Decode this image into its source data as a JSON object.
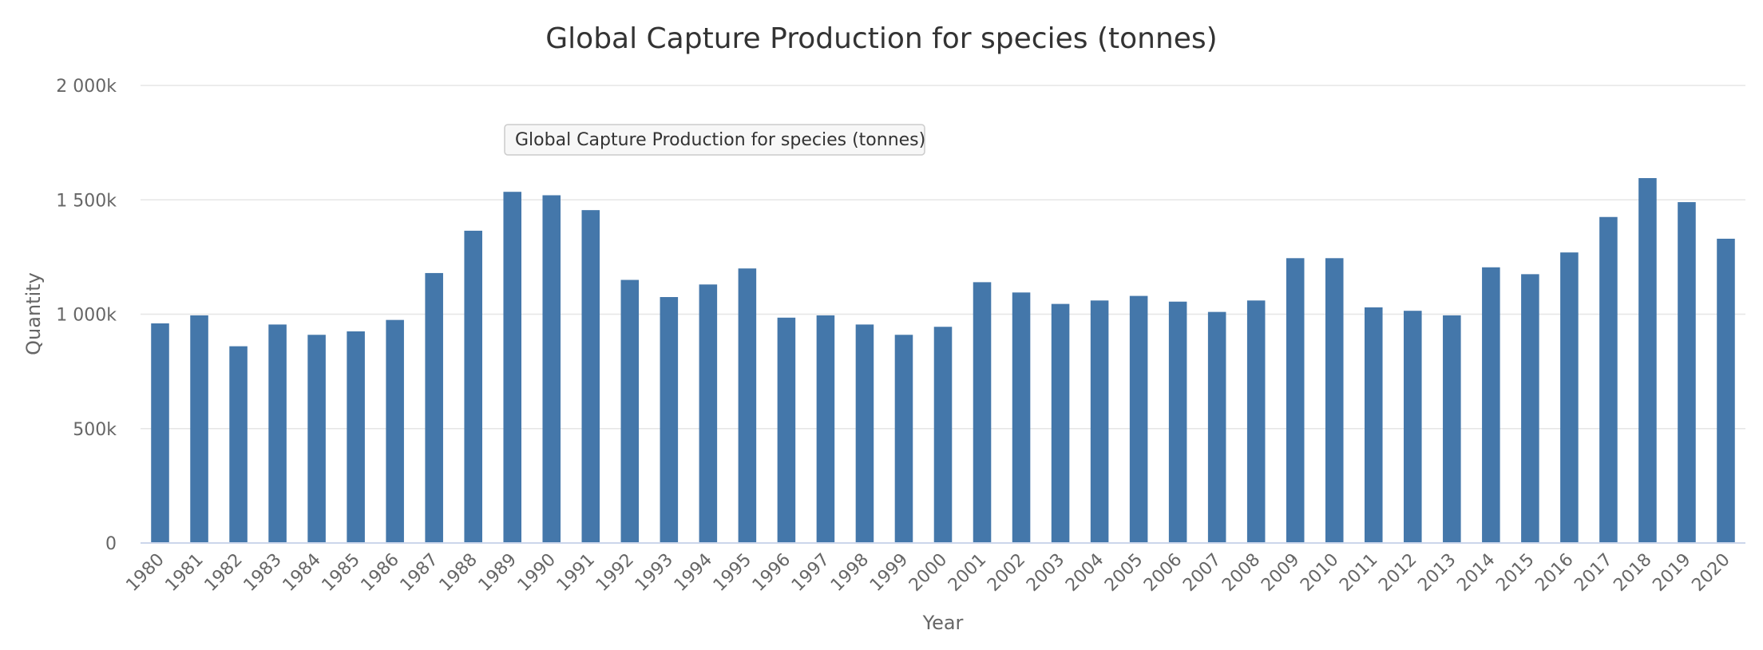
{
  "chart_data": {
    "type": "bar",
    "title": "Global Capture Production for species (tonnes)",
    "xlabel": "Year",
    "ylabel": "Quantity",
    "ylim": [
      0,
      2000000
    ],
    "y_ticks": [
      {
        "value": 0,
        "label": "0"
      },
      {
        "value": 500000,
        "label": "500k"
      },
      {
        "value": 1000000,
        "label": "1 000k"
      },
      {
        "value": 1500000,
        "label": "1 500k"
      },
      {
        "value": 2000000,
        "label": "2 000k"
      }
    ],
    "grid": true,
    "legend": "none",
    "bar_color": "#4477aa",
    "tooltip": "Global Capture Production for species (tonnes)",
    "categories": [
      "1980",
      "1981",
      "1982",
      "1983",
      "1984",
      "1985",
      "1986",
      "1987",
      "1988",
      "1989",
      "1990",
      "1991",
      "1992",
      "1993",
      "1994",
      "1995",
      "1996",
      "1997",
      "1998",
      "1999",
      "2000",
      "2001",
      "2002",
      "2003",
      "2004",
      "2005",
      "2006",
      "2007",
      "2008",
      "2009",
      "2010",
      "2011",
      "2012",
      "2013",
      "2014",
      "2015",
      "2016",
      "2017",
      "2018",
      "2019",
      "2020"
    ],
    "values": [
      960000,
      995000,
      860000,
      955000,
      910000,
      925000,
      975000,
      1180000,
      1365000,
      1535000,
      1520000,
      1455000,
      1150000,
      1075000,
      1130000,
      1200000,
      985000,
      995000,
      955000,
      910000,
      945000,
      1140000,
      1095000,
      1045000,
      1060000,
      1080000,
      1055000,
      1010000,
      1060000,
      1245000,
      1245000,
      1030000,
      1015000,
      995000,
      1205000,
      1175000,
      1270000,
      1425000,
      1595000,
      1490000,
      1330000
    ]
  }
}
